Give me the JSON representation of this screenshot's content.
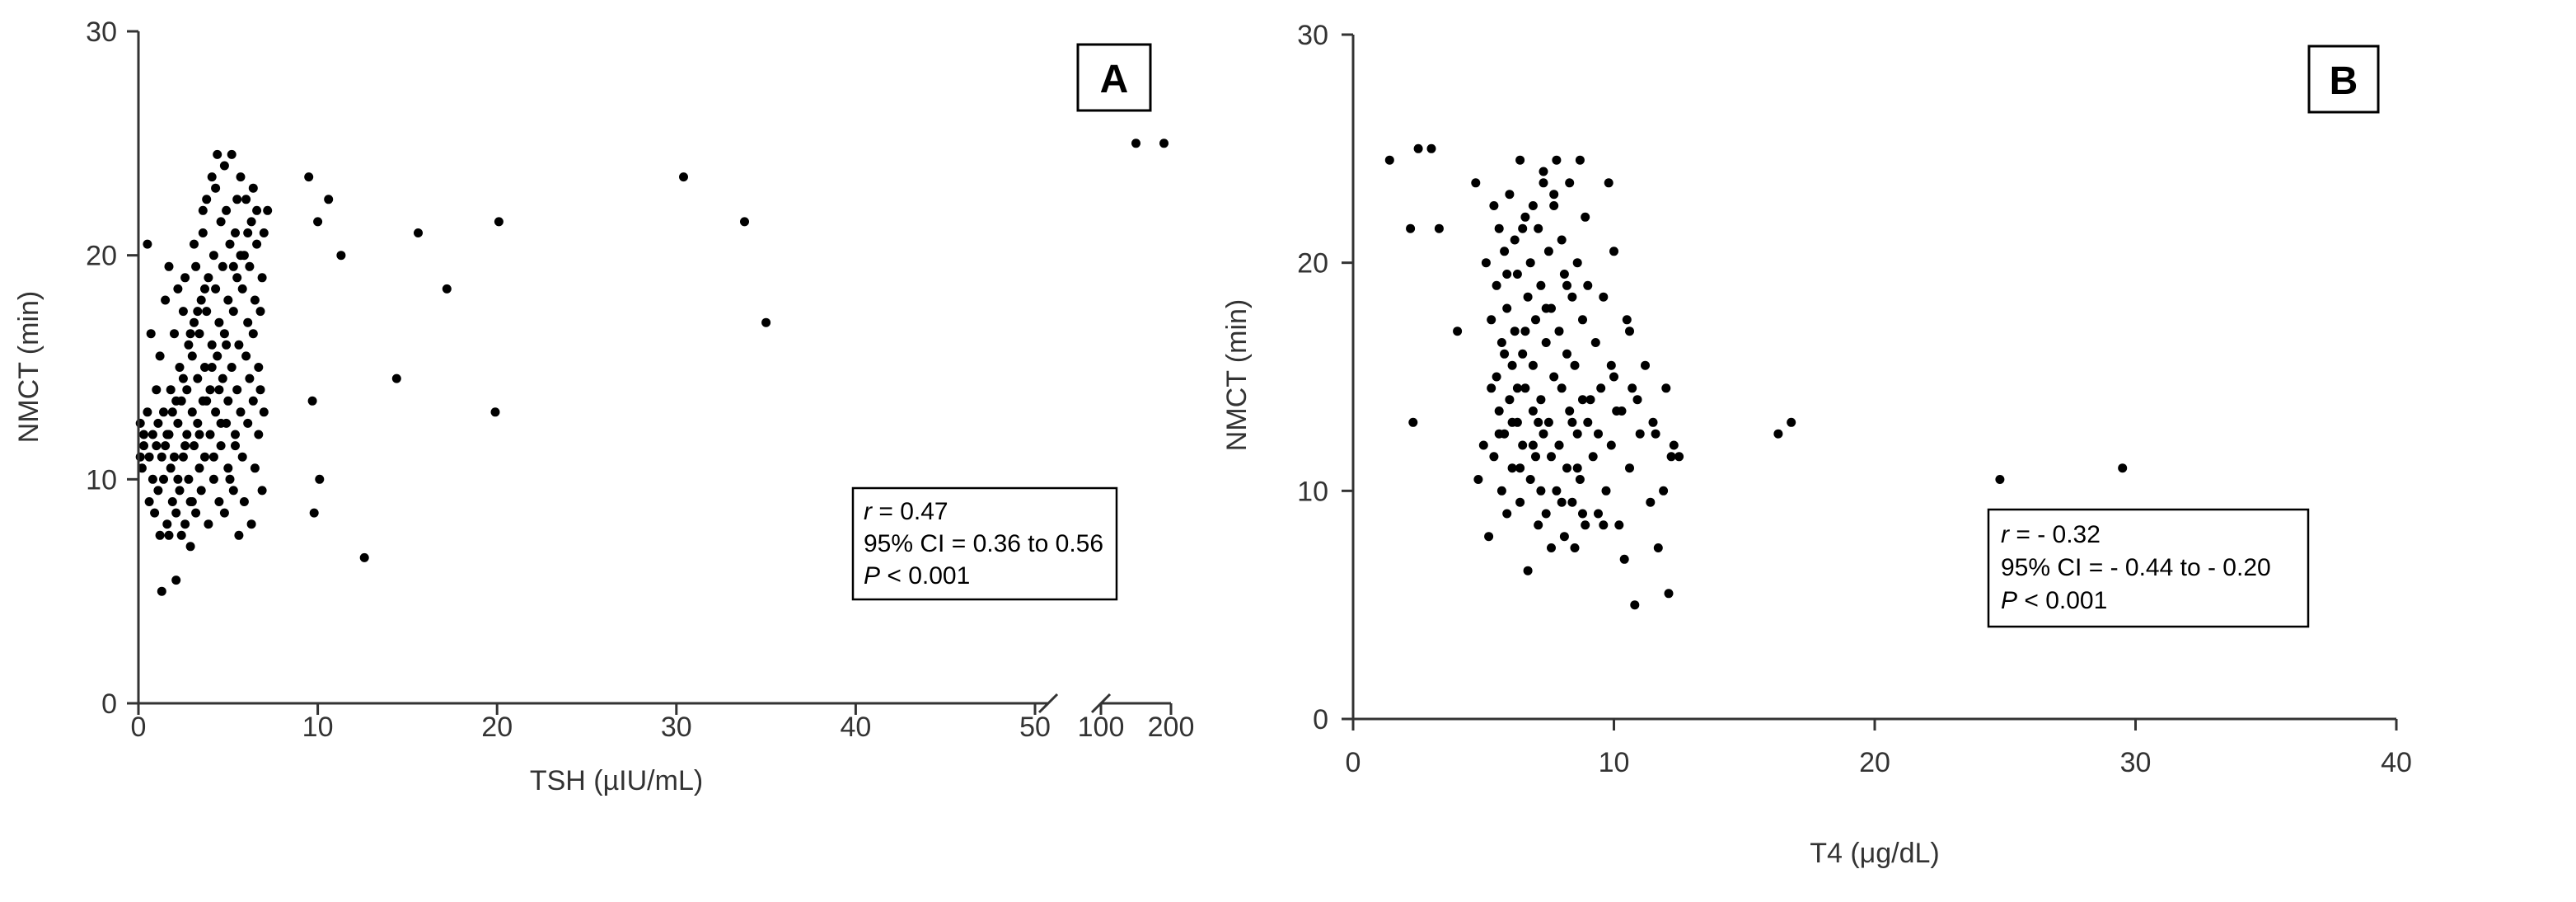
{
  "chart_data": [
    {
      "type": "scatter",
      "panel_label": "A",
      "xlabel": "TSH (µIU/mL)",
      "ylabel": "NMCT (min)",
      "x_axis_broken": true,
      "x_segment1_range": [
        0,
        50
      ],
      "x_segment1_ticks": [
        "0",
        "10",
        "20",
        "30",
        "40",
        "50"
      ],
      "x_segment2_range": [
        100,
        200
      ],
      "x_segment2_ticks": [
        "100",
        "200"
      ],
      "ylim": [
        0,
        30
      ],
      "y_ticks": [
        "0",
        "10",
        "20",
        "30"
      ],
      "grid": false,
      "annotation": {
        "r_label": "r",
        "r_value": " = 0.47",
        "ci": "95% CI = 0.36 to 0.56",
        "p_label": "P",
        "p_value": " < 0.001"
      },
      "points": [
        [
          0.1,
          12.5
        ],
        [
          0.1,
          11
        ],
        [
          0.2,
          10.5
        ],
        [
          0.3,
          12
        ],
        [
          0.3,
          11.5
        ],
        [
          0.5,
          13
        ],
        [
          0.5,
          20.5
        ],
        [
          0.6,
          9
        ],
        [
          0.6,
          11
        ],
        [
          0.7,
          16.5
        ],
        [
          0.8,
          12
        ],
        [
          0.8,
          10
        ],
        [
          0.9,
          8.5
        ],
        [
          1,
          14
        ],
        [
          1,
          11.5
        ],
        [
          1.1,
          12.5
        ],
        [
          1.1,
          9.5
        ],
        [
          1.2,
          7.5
        ],
        [
          1.2,
          15.5
        ],
        [
          1.3,
          5
        ],
        [
          1.4,
          13
        ],
        [
          1.4,
          10
        ],
        [
          1.5,
          11.5
        ],
        [
          1.5,
          18
        ],
        [
          1.6,
          8
        ],
        [
          1.6,
          12
        ],
        [
          1.7,
          7.5
        ],
        [
          1.7,
          19.5
        ],
        [
          1.8,
          10.5
        ],
        [
          1.8,
          14
        ],
        [
          1.9,
          13
        ],
        [
          1.9,
          9
        ],
        [
          2,
          16.5
        ],
        [
          2,
          11
        ],
        [
          2.1,
          5.5
        ],
        [
          2.1,
          8.5
        ],
        [
          2.2,
          12.5
        ],
        [
          2.2,
          18.5
        ],
        [
          2.3,
          15
        ],
        [
          2.3,
          9.5
        ],
        [
          2.4,
          7.5
        ],
        [
          2.4,
          13.5
        ],
        [
          2.5,
          11
        ],
        [
          2.5,
          17.5
        ],
        [
          2.6,
          19
        ],
        [
          2.6,
          8
        ],
        [
          2.7,
          12
        ],
        [
          2.7,
          14
        ],
        [
          2.8,
          10
        ],
        [
          2.8,
          16
        ],
        [
          2.9,
          7
        ],
        [
          2.9,
          9
        ],
        [
          3,
          13
        ],
        [
          3,
          15.5
        ],
        [
          3.1,
          11.5
        ],
        [
          3.1,
          17
        ],
        [
          3.2,
          19.5
        ],
        [
          3.2,
          8.5
        ],
        [
          3.3,
          12.5
        ],
        [
          3.3,
          14.5
        ],
        [
          3.4,
          10.5
        ],
        [
          3.4,
          16.5
        ],
        [
          3.5,
          9.5
        ],
        [
          3.5,
          18
        ],
        [
          3.6,
          13.5
        ],
        [
          3.6,
          21
        ],
        [
          3.7,
          15
        ],
        [
          3.7,
          11
        ],
        [
          3.8,
          17.5
        ],
        [
          3.8,
          22.5
        ],
        [
          3.9,
          8
        ],
        [
          3.9,
          19
        ],
        [
          4,
          14
        ],
        [
          4,
          12
        ],
        [
          4.1,
          16
        ],
        [
          4.1,
          23.5
        ],
        [
          4.2,
          10
        ],
        [
          4.2,
          20
        ],
        [
          4.3,
          13
        ],
        [
          4.3,
          18.5
        ],
        [
          4.4,
          15.5
        ],
        [
          4.4,
          24.5
        ],
        [
          4.5,
          9
        ],
        [
          4.5,
          17
        ],
        [
          4.6,
          11.5
        ],
        [
          4.6,
          21.5
        ],
        [
          4.7,
          14.5
        ],
        [
          4.7,
          19.5
        ],
        [
          4.8,
          8.5
        ],
        [
          4.8,
          16.5
        ],
        [
          4.9,
          12.5
        ],
        [
          4.9,
          22
        ],
        [
          5,
          13.5
        ],
        [
          5,
          18
        ],
        [
          5.1,
          10
        ],
        [
          5.1,
          20.5
        ],
        [
          5.2,
          24.5
        ],
        [
          5.2,
          15
        ],
        [
          5.3,
          9.5
        ],
        [
          5.3,
          17.5
        ],
        [
          5.4,
          12
        ],
        [
          5.4,
          21
        ],
        [
          5.5,
          14
        ],
        [
          5.5,
          19
        ],
        [
          5.6,
          7.5
        ],
        [
          5.6,
          16
        ],
        [
          5.7,
          13
        ],
        [
          5.7,
          23.5
        ],
        [
          5.8,
          11
        ],
        [
          5.8,
          18.5
        ],
        [
          5.9,
          9
        ],
        [
          5.9,
          20
        ],
        [
          6,
          15.5
        ],
        [
          6,
          22.5
        ],
        [
          6.1,
          12.5
        ],
        [
          6.1,
          17
        ],
        [
          6.2,
          14.5
        ],
        [
          6.2,
          19.5
        ],
        [
          6.3,
          8
        ],
        [
          6.3,
          21.5
        ],
        [
          6.4,
          13.5
        ],
        [
          6.4,
          16.5
        ],
        [
          6.5,
          10.5
        ],
        [
          6.5,
          18
        ],
        [
          6.6,
          20.5
        ],
        [
          6.6,
          22
        ],
        [
          6.7,
          12
        ],
        [
          6.7,
          15
        ],
        [
          6.8,
          14
        ],
        [
          6.8,
          17.5
        ],
        [
          6.9,
          9.5
        ],
        [
          6.9,
          19
        ],
        [
          7,
          21
        ],
        [
          7,
          13
        ],
        [
          2.2,
          10
        ],
        [
          2.6,
          11.5
        ],
        [
          3,
          9
        ],
        [
          3.4,
          12
        ],
        [
          3.8,
          13.5
        ],
        [
          4.2,
          11
        ],
        [
          4.6,
          12.5
        ],
        [
          5,
          10.5
        ],
        [
          5.4,
          11.5
        ],
        [
          1.3,
          11
        ],
        [
          1.7,
          12
        ],
        [
          2.1,
          13.5
        ],
        [
          2.5,
          14.5
        ],
        [
          2.9,
          16.5
        ],
        [
          3.3,
          17.5
        ],
        [
          3.7,
          18.5
        ],
        [
          4.1,
          15
        ],
        [
          4.5,
          14
        ],
        [
          4.9,
          16
        ],
        [
          5.3,
          19.5
        ],
        [
          5.7,
          20
        ],
        [
          6.1,
          21
        ],
        [
          3.1,
          20.5
        ],
        [
          3.6,
          22
        ],
        [
          4.3,
          23
        ],
        [
          4.8,
          24
        ],
        [
          5.5,
          22.5
        ],
        [
          6.4,
          23
        ],
        [
          7.2,
          22
        ],
        [
          9.5,
          23.5
        ],
        [
          9.7,
          13.5
        ],
        [
          9.8,
          8.5
        ],
        [
          10,
          21.5
        ],
        [
          10.1,
          10
        ],
        [
          10.6,
          22.5
        ],
        [
          11.3,
          20
        ],
        [
          12.6,
          6.5
        ],
        [
          14.4,
          14.5
        ],
        [
          15.6,
          21
        ],
        [
          17.2,
          18.5
        ],
        [
          19.9,
          13
        ],
        [
          20.1,
          21.5
        ],
        [
          30.4,
          23.5
        ],
        [
          33.8,
          21.5
        ],
        [
          35,
          17
        ],
        [
          150,
          25
        ],
        [
          190,
          25
        ]
      ]
    },
    {
      "type": "scatter",
      "panel_label": "B",
      "xlabel": "T4 (μg/dL)",
      "ylabel": "NMCT (min)",
      "xlim": [
        0,
        40
      ],
      "x_ticks": [
        "0",
        "10",
        "20",
        "30",
        "40"
      ],
      "ylim": [
        0,
        30
      ],
      "y_ticks": [
        "0",
        "10",
        "20",
        "30"
      ],
      "grid": false,
      "annotation": {
        "r_label": "r",
        "r_value": " = - 0.32",
        "ci": "95% CI = - 0.44 to - 0.20",
        "p_label": "P",
        "p_value": " < 0.001"
      },
      "points": [
        [
          1.4,
          24.5
        ],
        [
          2.2,
          21.5
        ],
        [
          2.3,
          13
        ],
        [
          2.5,
          25
        ],
        [
          3,
          25
        ],
        [
          3.3,
          21.5
        ],
        [
          4,
          17
        ],
        [
          4.7,
          23.5
        ],
        [
          4.8,
          10.5
        ],
        [
          5,
          12
        ],
        [
          5.1,
          20
        ],
        [
          5.2,
          8
        ],
        [
          5.3,
          14.5
        ],
        [
          5.3,
          17.5
        ],
        [
          5.4,
          22.5
        ],
        [
          5.4,
          11.5
        ],
        [
          5.5,
          15
        ],
        [
          5.5,
          19
        ],
        [
          5.6,
          13.5
        ],
        [
          5.6,
          21.5
        ],
        [
          5.7,
          10
        ],
        [
          5.7,
          16.5
        ],
        [
          5.8,
          12.5
        ],
        [
          5.8,
          20.5
        ],
        [
          5.9,
          9
        ],
        [
          5.9,
          18
        ],
        [
          6,
          14
        ],
        [
          6,
          23
        ],
        [
          6.1,
          11
        ],
        [
          6.1,
          15.5
        ],
        [
          6.2,
          17
        ],
        [
          6.2,
          21
        ],
        [
          6.3,
          13
        ],
        [
          6.3,
          19.5
        ],
        [
          6.4,
          9.5
        ],
        [
          6.4,
          24.5
        ],
        [
          6.5,
          12
        ],
        [
          6.5,
          16
        ],
        [
          6.6,
          14.5
        ],
        [
          6.6,
          22
        ],
        [
          6.7,
          6.5
        ],
        [
          6.7,
          18.5
        ],
        [
          6.8,
          10.5
        ],
        [
          6.8,
          20
        ],
        [
          6.9,
          13.5
        ],
        [
          6.9,
          15.5
        ],
        [
          7,
          11.5
        ],
        [
          7,
          17.5
        ],
        [
          7.1,
          8.5
        ],
        [
          7.1,
          21.5
        ],
        [
          7.2,
          14
        ],
        [
          7.2,
          19
        ],
        [
          7.3,
          12.5
        ],
        [
          7.3,
          23.5
        ],
        [
          7.4,
          9
        ],
        [
          7.4,
          16.5
        ],
        [
          7.5,
          13
        ],
        [
          7.5,
          20.5
        ],
        [
          7.6,
          7.5
        ],
        [
          7.6,
          18
        ],
        [
          7.7,
          15
        ],
        [
          7.7,
          22.5
        ],
        [
          7.8,
          10
        ],
        [
          7.8,
          24.5
        ],
        [
          7.9,
          12
        ],
        [
          7.9,
          17
        ],
        [
          8,
          14.5
        ],
        [
          8,
          21
        ],
        [
          8.1,
          8
        ],
        [
          8.1,
          19.5
        ],
        [
          8.2,
          11
        ],
        [
          8.2,
          16
        ],
        [
          8.3,
          13.5
        ],
        [
          8.3,
          23.5
        ],
        [
          8.4,
          9.5
        ],
        [
          8.4,
          18.5
        ],
        [
          8.5,
          7.5
        ],
        [
          8.5,
          15.5
        ],
        [
          8.6,
          12.5
        ],
        [
          8.6,
          20
        ],
        [
          8.7,
          10.5
        ],
        [
          8.7,
          24.5
        ],
        [
          8.8,
          14
        ],
        [
          8.8,
          17.5
        ],
        [
          8.9,
          8.5
        ],
        [
          8.9,
          22
        ],
        [
          9,
          13
        ],
        [
          9,
          19
        ],
        [
          9.2,
          11.5
        ],
        [
          9.3,
          16.5
        ],
        [
          9.4,
          9
        ],
        [
          9.5,
          14.5
        ],
        [
          9.6,
          18.5
        ],
        [
          9.7,
          10
        ],
        [
          9.8,
          23.5
        ],
        [
          9.9,
          12
        ],
        [
          10,
          15
        ],
        [
          10,
          20.5
        ],
        [
          10.2,
          8.5
        ],
        [
          10.3,
          13.5
        ],
        [
          10.4,
          7
        ],
        [
          10.5,
          17.5
        ],
        [
          10.6,
          11
        ],
        [
          10.7,
          14.5
        ],
        [
          10.8,
          5
        ],
        [
          11,
          12.5
        ],
        [
          11.2,
          15.5
        ],
        [
          11.4,
          9.5
        ],
        [
          11.5,
          13
        ],
        [
          11.7,
          7.5
        ],
        [
          11.9,
          10
        ],
        [
          12,
          14.5
        ],
        [
          12.1,
          5.5
        ],
        [
          12.2,
          11.5
        ],
        [
          12.3,
          12
        ],
        [
          12.5,
          11.5
        ],
        [
          6.5,
          21.5
        ],
        [
          7.3,
          24
        ],
        [
          6.9,
          22.5
        ],
        [
          7.7,
          23
        ],
        [
          5.9,
          19.5
        ],
        [
          6.6,
          17
        ],
        [
          7.4,
          18
        ],
        [
          8.2,
          19
        ],
        [
          5.8,
          16
        ],
        [
          6.3,
          14.5
        ],
        [
          7.1,
          13
        ],
        [
          7.9,
          12
        ],
        [
          8.6,
          11
        ],
        [
          9.4,
          12.5
        ],
        [
          10.1,
          13.5
        ],
        [
          10.9,
          14
        ],
        [
          11.6,
          12.5
        ],
        [
          5.6,
          12.5
        ],
        [
          6.4,
          11
        ],
        [
          7.2,
          10
        ],
        [
          8,
          9.5
        ],
        [
          8.8,
          9
        ],
        [
          9.6,
          8.5
        ],
        [
          6.1,
          13
        ],
        [
          6.9,
          12
        ],
        [
          7.6,
          11.5
        ],
        [
          8.4,
          13
        ],
        [
          9.1,
          14
        ],
        [
          9.9,
          15.5
        ],
        [
          10.6,
          17
        ],
        [
          16.3,
          12.5
        ],
        [
          16.8,
          13
        ],
        [
          24.8,
          10.5
        ],
        [
          29.5,
          11
        ]
      ]
    }
  ]
}
